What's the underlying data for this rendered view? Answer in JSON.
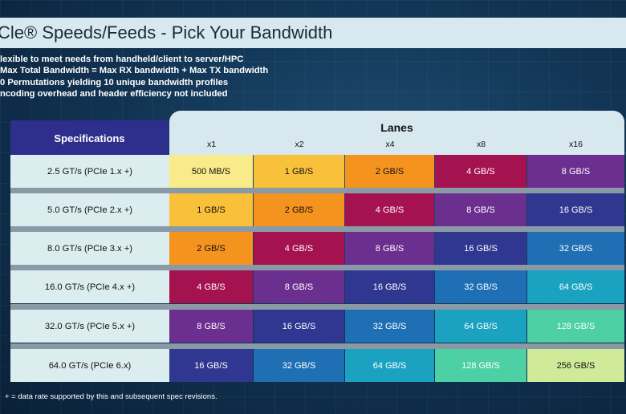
{
  "title": "Cle® Speeds/Feeds - Pick Your Bandwidth",
  "bullets": [
    "lexible to meet needs from handheld/client to server/HPC",
    "Max Total Bandwidth = Max RX bandwidth + Max TX bandwidth",
    "0 Permutations yielding 10 unique bandwidth profiles",
    "ncoding overhead and header efficiency not included"
  ],
  "table": {
    "spec_header": "Specifications",
    "lanes_header": "Lanes",
    "lanes": [
      "x1",
      "x2",
      "x4",
      "x8",
      "x16"
    ],
    "rows": [
      {
        "spec": "2.5 GT/s (PCIe 1.x +)",
        "values": [
          "500 MB/S",
          "1 GB/S",
          "2 GB/S",
          "4 GB/S",
          "8 GB/S"
        ]
      },
      {
        "spec": "5.0 GT/s (PCIe 2.x +)",
        "values": [
          "1 GB/S",
          "2 GB/S",
          "4 GB/S",
          "8 GB/S",
          "16 GB/S"
        ]
      },
      {
        "spec": "8.0 GT/s (PCIe 3.x +)",
        "values": [
          "2 GB/S",
          "4 GB/S",
          "8 GB/S",
          "16 GB/S",
          "32 GB/S"
        ]
      },
      {
        "spec": "16.0 GT/s (PCIe 4.x +)",
        "values": [
          "4 GB/S",
          "8 GB/S",
          "16 GB/S",
          "32 GB/S",
          "64 GB/S"
        ]
      },
      {
        "spec": "32.0 GT/s (PCIe 5.x +)",
        "values": [
          "8 GB/S",
          "16 GB/S",
          "32 GB/S",
          "64 GB/S",
          "128 GB/S"
        ]
      },
      {
        "spec": "64.0 GT/s (PCIe 6.x)",
        "values": [
          "16 GB/S",
          "32 GB/S",
          "64 GB/S",
          "128 GB/S",
          "256 GB/S"
        ]
      }
    ]
  },
  "colors": {
    "500 MB/S": "#faeb8a",
    "1 GB/S": "#f9c13a",
    "2 GB/S": "#f4941f",
    "4 GB/S": "#a4124f",
    "8 GB/S": "#6b2f8f",
    "16 GB/S": "#2f3790",
    "32 GB/S": "#1f6fb4",
    "64 GB/S": "#1aa2c0",
    "128 GB/S": "#4cd0a4",
    "256 GB/S": "#cfeb9a"
  },
  "footnote": "+ = data rate supported by this and subsequent spec revisions."
}
